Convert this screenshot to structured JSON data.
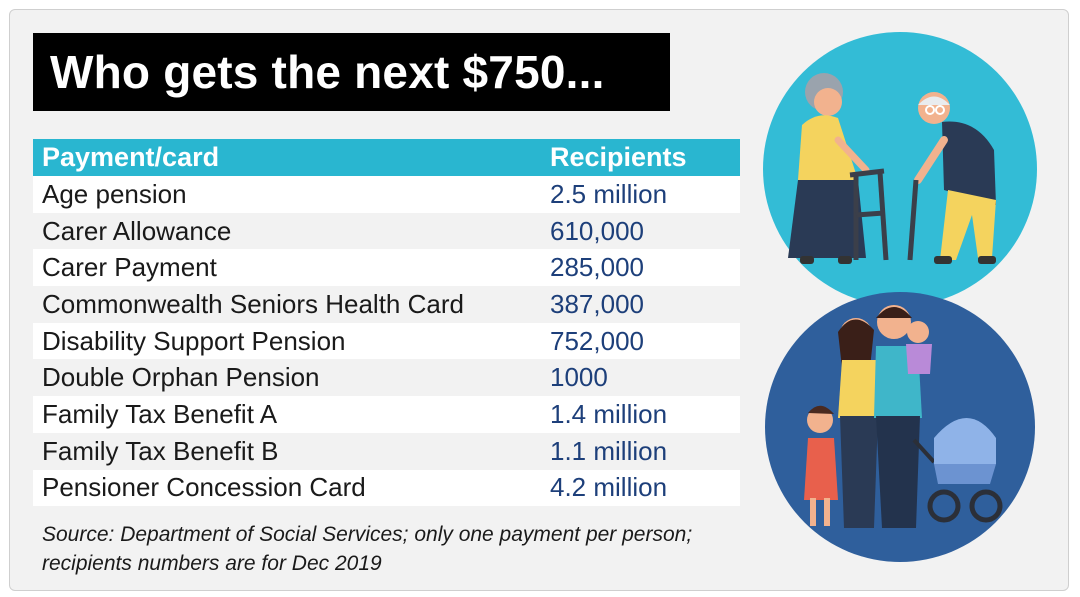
{
  "title": "Who gets the next $750...",
  "table": {
    "header": {
      "name": "Payment/card",
      "value": "Recipients"
    },
    "rows": [
      {
        "name": "Age pension",
        "value": "2.5 million"
      },
      {
        "name": "Carer Allowance",
        "value": "610,000"
      },
      {
        "name": "Carer Payment",
        "value": "285,000"
      },
      {
        "name": "Commonwealth Seniors Health Card",
        "value": "387,000"
      },
      {
        "name": "Disability Support Pension",
        "value": "752,000"
      },
      {
        "name": "Double Orphan Pension",
        "value": "1000"
      },
      {
        "name": "Family Tax Benefit A",
        "value": "1.4 million"
      },
      {
        "name": "Family Tax Benefit B",
        "value": "1.1 million"
      },
      {
        "name": "Pensioner Concession Card",
        "value": "4.2 million"
      }
    ]
  },
  "source_line1": "Source: Department of Social Services; only one payment per person;",
  "source_line2": "recipients numbers are for Dec 2019",
  "colors": {
    "header": "#29b6d0",
    "values": "#1d3f7a",
    "circle_top": "#33bcd6",
    "circle_bottom": "#2f5f9c"
  },
  "illustrations": [
    "elderly-couple-illustration",
    "family-with-stroller-illustration"
  ]
}
